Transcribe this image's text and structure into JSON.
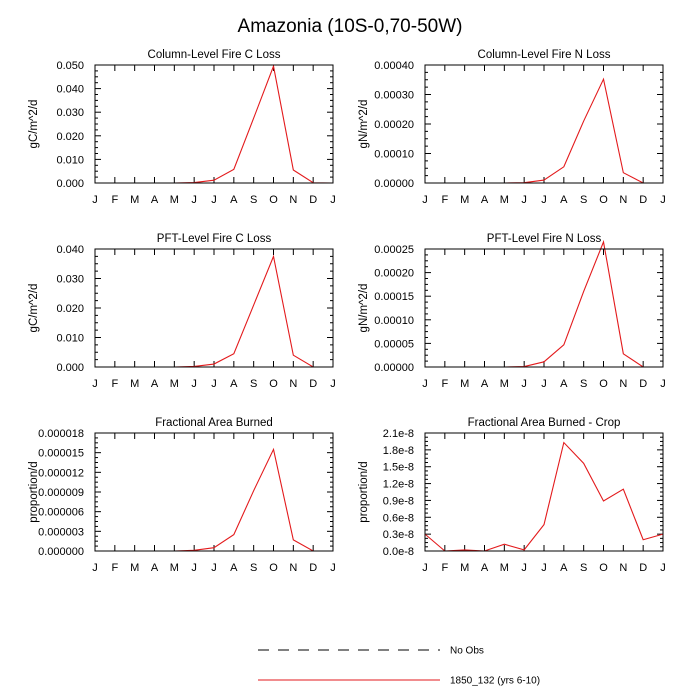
{
  "figure": {
    "title": "Amazonia (10S-0,70-50W)",
    "months": [
      "J",
      "F",
      "M",
      "A",
      "M",
      "J",
      "J",
      "A",
      "S",
      "O",
      "N",
      "D",
      "J"
    ],
    "legend": [
      {
        "label": "No Obs",
        "style": "dashed",
        "color": "#000000"
      },
      {
        "label": "1850_132 (yrs 6-10)",
        "style": "solid",
        "color": "#e31a1c"
      }
    ]
  },
  "chart_data": [
    {
      "type": "line",
      "title": "Column-Level Fire C Loss",
      "ylabel": "gC/m^2/d",
      "ylim": [
        0,
        0.05
      ],
      "yticks": [
        "0.000",
        "0.010",
        "0.020",
        "0.030",
        "0.040",
        "0.050"
      ],
      "series": [
        {
          "name": "1850_132 (yrs 6-10)",
          "color": "#e31a1c",
          "values": [
            0.0,
            0.0,
            0.0,
            0.0,
            0.0,
            0.0002,
            0.0012,
            0.0058,
            0.0275,
            0.0495,
            0.0055,
            0.0001,
            0.0
          ]
        }
      ]
    },
    {
      "type": "line",
      "title": "Column-Level Fire N Loss",
      "ylabel": "gN/m^2/d",
      "ylim": [
        0,
        0.0004
      ],
      "yticks": [
        "0.00000",
        "0.00010",
        "0.00020",
        "0.00030",
        "0.00040"
      ],
      "series": [
        {
          "name": "1850_132 (yrs 6-10)",
          "color": "#e31a1c",
          "values": [
            0.0,
            0.0,
            0.0,
            0.0,
            0.0,
            1e-06,
            1e-05,
            5.5e-05,
            0.00021,
            0.000352,
            3.5e-05,
            0.0,
            0.0
          ]
        }
      ]
    },
    {
      "type": "line",
      "title": "PFT-Level Fire C Loss",
      "ylabel": "gC/m^2/d",
      "ylim": [
        0,
        0.04
      ],
      "yticks": [
        "0.000",
        "0.010",
        "0.020",
        "0.030",
        "0.040"
      ],
      "series": [
        {
          "name": "1850_132 (yrs 6-10)",
          "color": "#e31a1c",
          "values": [
            0.0,
            0.0,
            0.0,
            0.0,
            0.0,
            0.0002,
            0.001,
            0.0045,
            0.021,
            0.0375,
            0.004,
            0.0,
            0.0
          ]
        }
      ]
    },
    {
      "type": "line",
      "title": "PFT-Level Fire N Loss",
      "ylabel": "gN/m^2/d",
      "ylim": [
        0,
        0.00025
      ],
      "yticks": [
        "0.00000",
        "0.00005",
        "0.00010",
        "0.00015",
        "0.00020",
        "0.00025"
      ],
      "series": [
        {
          "name": "1850_132 (yrs 6-10)",
          "color": "#e31a1c",
          "values": [
            0.0,
            0.0,
            0.0,
            0.0,
            0.0,
            1e-06,
            1.1e-05,
            4.7e-05,
            0.00016,
            0.000265,
            2.8e-05,
            0.0,
            0.0
          ]
        }
      ]
    },
    {
      "type": "line",
      "title": "Fractional Area Burned",
      "ylabel": "proportion/d",
      "ylim": [
        0,
        1.8e-05
      ],
      "yticks": [
        "0.000000",
        "0.000003",
        "0.000006",
        "0.000009",
        "0.000012",
        "0.000015",
        "0.000018"
      ],
      "series": [
        {
          "name": "1850_132 (yrs 6-10)",
          "color": "#e31a1c",
          "values": [
            0.0,
            0.0,
            0.0,
            0.0,
            0.0,
            1e-07,
            5e-07,
            2.5e-06,
            9.2e-06,
            1.55e-05,
            1.7e-06,
            0.0,
            0.0
          ]
        }
      ]
    },
    {
      "type": "line",
      "title": "Fractional Area Burned - Crop",
      "ylabel": "proportion/d",
      "ylim": [
        0,
        2.1e-08
      ],
      "yticks": [
        "0.0e-8",
        "0.3e-8",
        "0.6e-8",
        "0.9e-8",
        "1.2e-8",
        "1.5e-8",
        "1.8e-8",
        "2.1e-8"
      ],
      "series": [
        {
          "name": "1850_132 (yrs 6-10)",
          "color": "#e31a1c",
          "values": [
            3e-09,
            0.0,
            2e-10,
            0.0,
            1.2e-09,
            2e-10,
            4.7e-09,
            1.93e-08,
            1.56e-08,
            8.9e-09,
            1.1e-08,
            2e-09,
            3e-09
          ]
        }
      ]
    }
  ]
}
